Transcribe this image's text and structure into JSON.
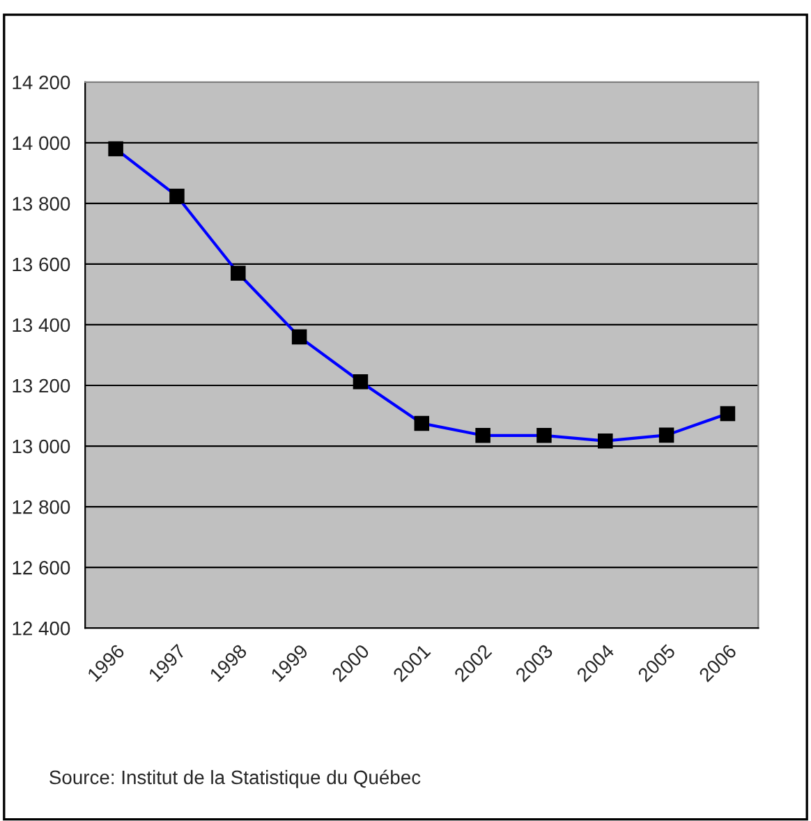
{
  "chart_data": {
    "type": "line",
    "categories": [
      "1996",
      "1997",
      "1998",
      "1999",
      "2000",
      "2001",
      "2002",
      "2003",
      "2004",
      "2005",
      "2006"
    ],
    "series": [
      {
        "color": "#0000ff",
        "values": [
          13980,
          13824,
          13570,
          13360,
          13212,
          13075,
          13035,
          13035,
          13017,
          13036,
          13107
        ]
      }
    ],
    "ylim": [
      12400,
      14200
    ],
    "yticks": [
      {
        "value": 12400,
        "label": "12 400"
      },
      {
        "value": 12600,
        "label": "12 600"
      },
      {
        "value": 12800,
        "label": "12 800"
      },
      {
        "value": 13000,
        "label": "13 000"
      },
      {
        "value": 13200,
        "label": "13 200"
      },
      {
        "value": 13400,
        "label": "13 400"
      },
      {
        "value": 13600,
        "label": "13 600"
      },
      {
        "value": 13800,
        "label": "13 800"
      },
      {
        "value": 14000,
        "label": "14 000"
      },
      {
        "value": 14200,
        "label": "14 200"
      }
    ],
    "grid": "y",
    "marker": "square",
    "line_style": "solid",
    "legend": false,
    "annotations": [
      "Source: Institut de la Statistique du Québec"
    ]
  }
}
